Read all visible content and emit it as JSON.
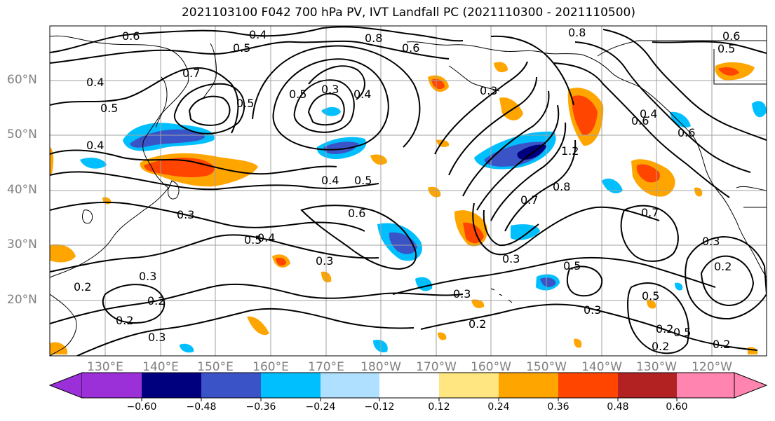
{
  "title": "2021103100 F042 700 hPa PV, IVT Landfall PC (2021110300 - 2021110500)",
  "lat_labels": [
    "60°N",
    "50°N",
    "40°N",
    "30°N",
    "20°N"
  ],
  "lon_labels": [
    "130°E",
    "140°E",
    "150°E",
    "160°E",
    "170°E",
    "180°W",
    "170°W",
    "160°W",
    "150°W",
    "140°W",
    "130°W",
    "120°W"
  ],
  "colorbar": {
    "ticks": [
      "−0.60",
      "−0.48",
      "−0.36",
      "−0.24",
      "−0.12",
      "0.12",
      "0.24",
      "0.36",
      "0.48",
      "0.60"
    ],
    "colors": [
      "#9b30d8",
      "#00007f",
      "#3a54c8",
      "#00bfff",
      "#b0e0ff",
      "#ffffff",
      "#ffe680",
      "#ffa500",
      "#ff4500",
      "#b22222",
      "#ff85b0"
    ]
  },
  "contour_labels": [
    "0.6",
    "0.4",
    "0.5",
    "0.8",
    "0.6",
    "0.8",
    "0.6",
    "0.5",
    "0.7",
    "0.4",
    "0.5",
    "0.4",
    "0.3",
    "0.4",
    "0.5",
    "0.5",
    "0.3",
    "1.2",
    "0.4",
    "0.5",
    "0.6",
    "0.7",
    "0.8",
    "0.7",
    "0.3",
    "0.5",
    "0.4",
    "0.3",
    "0.3",
    "0.5",
    "0.3",
    "0.2",
    "0.3",
    "0.2",
    "0.2",
    "0.3",
    "0.2",
    "0.3",
    "0.2",
    "0.2",
    "0.5",
    "0.2",
    "0.2",
    "0.5",
    "0.3",
    "0.6",
    "0.6",
    "0.4"
  ]
}
